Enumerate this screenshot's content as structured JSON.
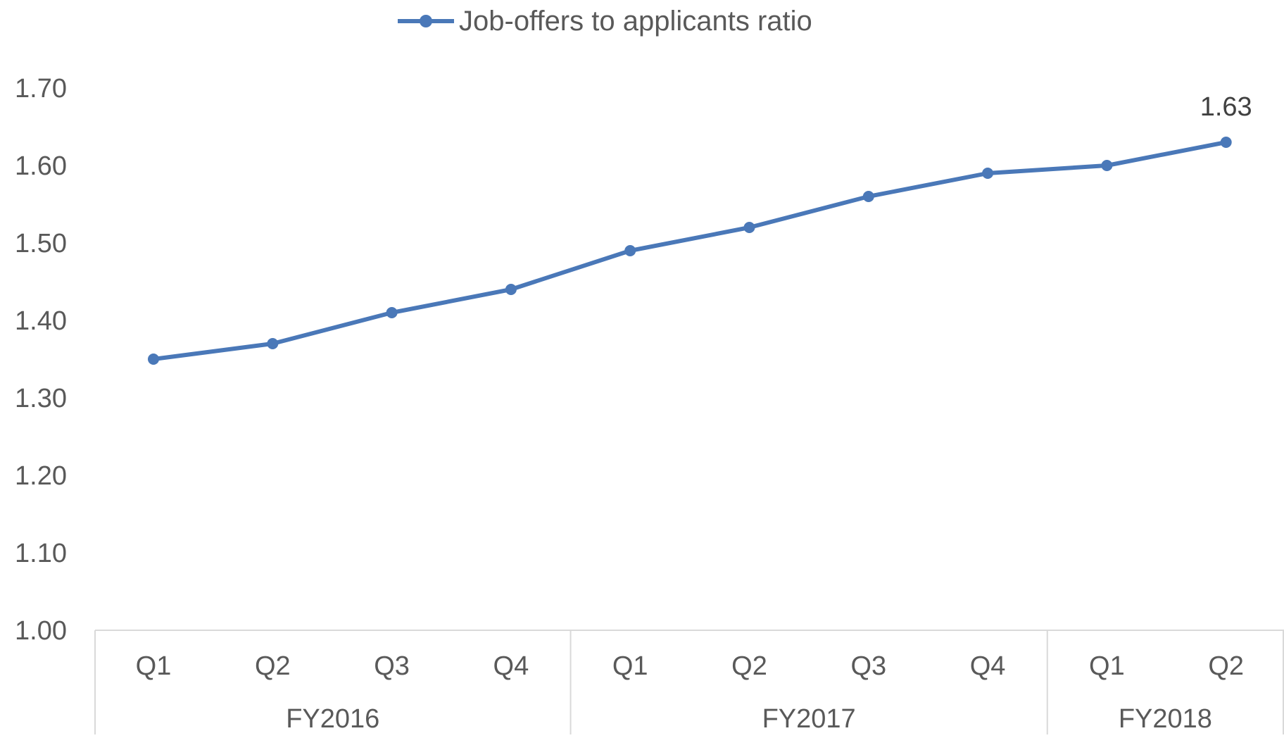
{
  "chart_data": {
    "type": "line",
    "categories": [
      "Q1",
      "Q2",
      "Q3",
      "Q4",
      "Q1",
      "Q2",
      "Q3",
      "Q4",
      "Q1",
      "Q2"
    ],
    "groups": [
      {
        "label": "FY2016",
        "categories": [
          "Q1",
          "Q2",
          "Q3",
          "Q4"
        ]
      },
      {
        "label": "FY2017",
        "categories": [
          "Q1",
          "Q2",
          "Q3",
          "Q4"
        ]
      },
      {
        "label": "FY2018",
        "categories": [
          "Q1",
          "Q2"
        ]
      }
    ],
    "series": [
      {
        "name": "Job-offers to applicants ratio",
        "values": [
          1.35,
          1.37,
          1.41,
          1.44,
          1.49,
          1.52,
          1.56,
          1.59,
          1.6,
          1.63
        ],
        "color": "#4A78B8"
      }
    ],
    "data_labels": [
      {
        "index": 9,
        "text": "1.63"
      }
    ],
    "yticks": [
      "1.00",
      "1.10",
      "1.20",
      "1.30",
      "1.40",
      "1.50",
      "1.60",
      "1.70"
    ],
    "ylim": [
      1.0,
      1.7
    ],
    "grid": false,
    "legend": "top-center",
    "axis_color": "#D9D9D9",
    "title": "",
    "xlabel": "",
    "ylabel": ""
  }
}
